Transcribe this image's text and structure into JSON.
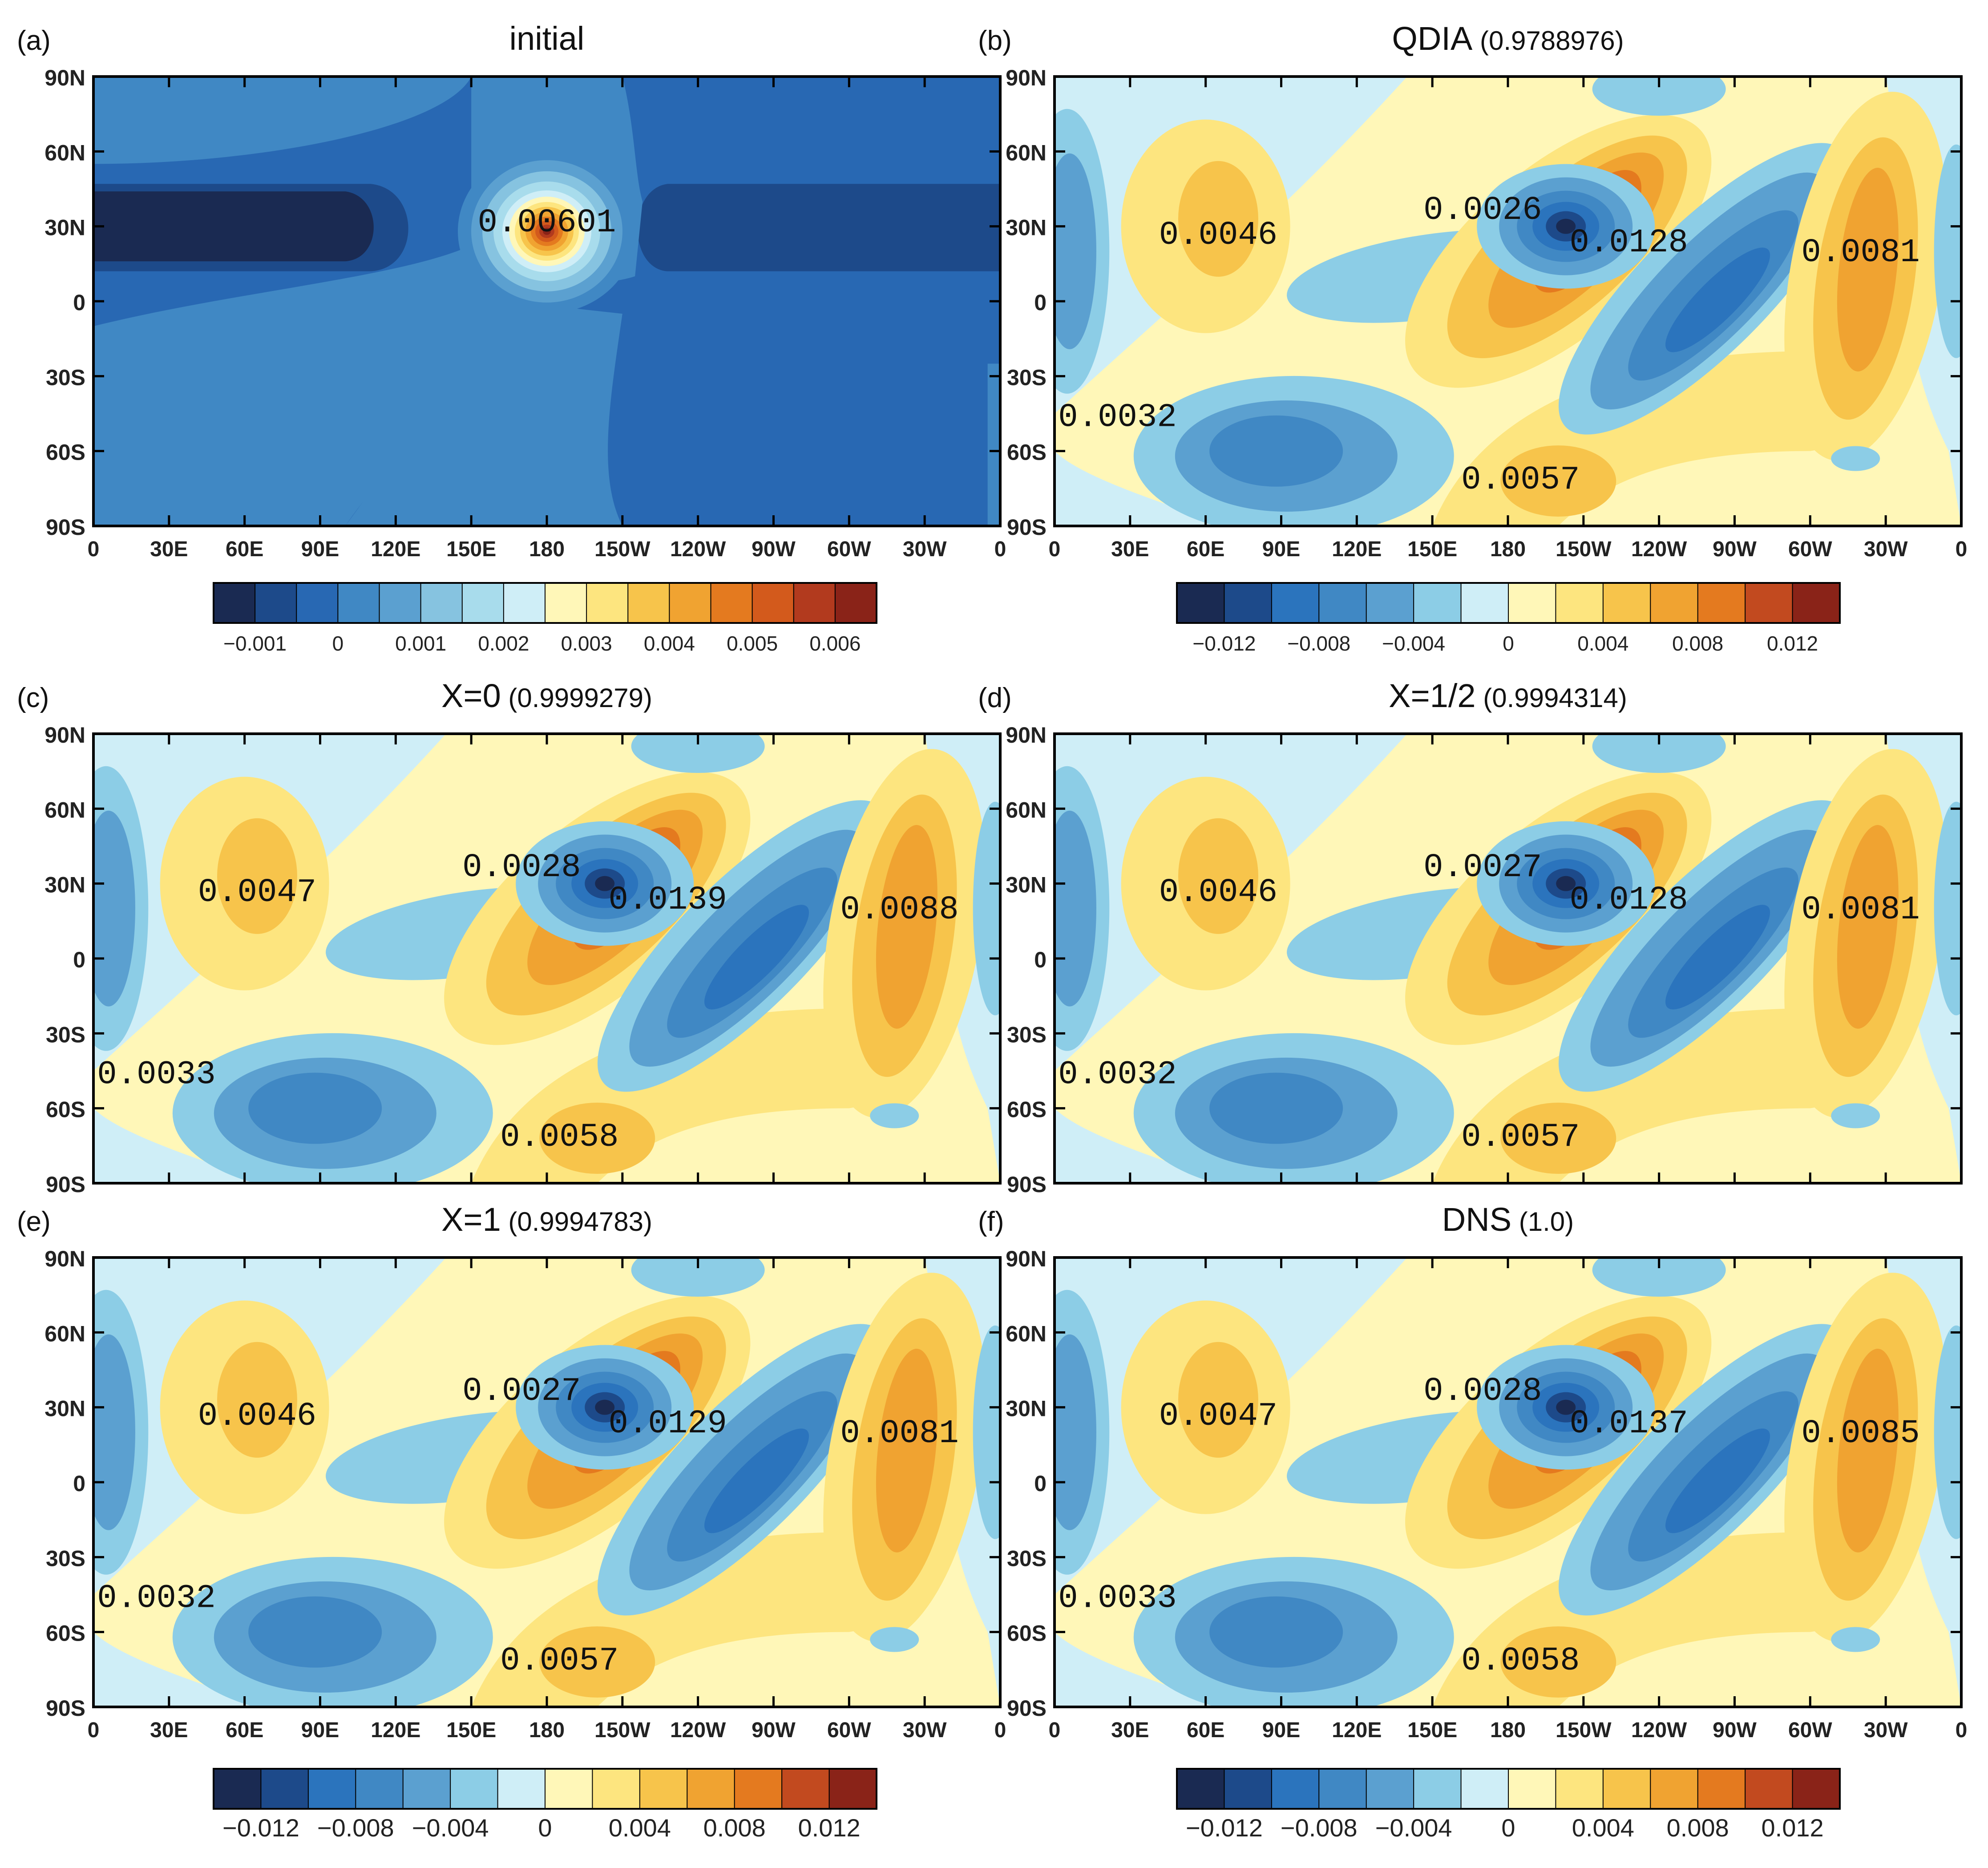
{
  "figure": {
    "colorbars": [
      {
        "id": "cb-a",
        "colors": [
          "#1a2a52",
          "#1d4a8a",
          "#2868b3",
          "#4088c4",
          "#5ba0d0",
          "#86c3e0",
          "#a8dcec",
          "#cfeef7",
          "#fff7b8",
          "#fde57f",
          "#f7c44b",
          "#f0a331",
          "#e47a1f",
          "#d35a1c",
          "#b23a1e",
          "#8a2318"
        ],
        "labels": [
          "−0.001",
          "0",
          "0.001",
          "0.002",
          "0.003",
          "0.004",
          "0.005",
          "0.006"
        ]
      },
      {
        "id": "cb-b",
        "colors": [
          "#1a2a52",
          "#1d4a8a",
          "#2b74bd",
          "#4088c4",
          "#5ba0d0",
          "#8ccde6",
          "#cfeef7",
          "#fff7b8",
          "#fde57f",
          "#f7c44b",
          "#f0a331",
          "#e47a1f",
          "#c24a1f",
          "#8a2318"
        ],
        "labels": [
          "−0.012",
          "−0.008",
          "−0.004",
          "0",
          "0.004",
          "0.008",
          "0.012"
        ]
      },
      {
        "id": "cb-bottom-left",
        "colors": [
          "#1a2a52",
          "#1d4a8a",
          "#2b74bd",
          "#4088c4",
          "#5ba0d0",
          "#8ccde6",
          "#cfeef7",
          "#fff7b8",
          "#fde57f",
          "#f7c44b",
          "#f0a331",
          "#e47a1f",
          "#c24a1f",
          "#8a2318"
        ],
        "labels": [
          "−0.012",
          "−0.008",
          "−0.004",
          "0",
          "0.004",
          "0.008",
          "0.012"
        ]
      },
      {
        "id": "cb-bottom-right",
        "colors": [
          "#1a2a52",
          "#1d4a8a",
          "#2b74bd",
          "#4088c4",
          "#5ba0d0",
          "#8ccde6",
          "#cfeef7",
          "#fff7b8",
          "#fde57f",
          "#f7c44b",
          "#f0a331",
          "#e47a1f",
          "#c24a1f",
          "#8a2318"
        ],
        "labels": [
          "−0.012",
          "−0.008",
          "−0.004",
          "0",
          "0.004",
          "0.008",
          "0.012"
        ]
      }
    ]
  },
  "chart_data": [
    {
      "type": "heatmap",
      "panel": "(a)",
      "title": "initial",
      "title_suffix": "",
      "x_ticks": [
        "0",
        "30E",
        "60E",
        "90E",
        "120E",
        "150E",
        "180",
        "150W",
        "120W",
        "90W",
        "60W",
        "30W",
        "0"
      ],
      "y_ticks": [
        "90N",
        "60N",
        "30N",
        "0",
        "30S",
        "60S",
        "90S"
      ],
      "show_x_ticks": true,
      "field": "initial",
      "annotations": [
        {
          "text": "0.00601",
          "lon": 180,
          "lat": 28
        }
      ]
    },
    {
      "type": "heatmap",
      "panel": "(b)",
      "title": "QDIA",
      "title_suffix": "(0.9788976)",
      "x_ticks": [
        "0",
        "30E",
        "60E",
        "90E",
        "120E",
        "150E",
        "180",
        "150W",
        "120W",
        "90W",
        "60W",
        "30W",
        "0"
      ],
      "y_ticks": [
        "90N",
        "60N",
        "30N",
        "0",
        "30S",
        "60S",
        "90S"
      ],
      "show_x_ticks": true,
      "field": "wave",
      "annotations": [
        {
          "text": "0.0046",
          "lon": 65,
          "lat": 23
        },
        {
          "text": "0.0026",
          "lon": 170,
          "lat": 33
        },
        {
          "text": "0.0128",
          "lon": 228,
          "lat": 20
        },
        {
          "text": "0.0081",
          "lon": 320,
          "lat": 16
        },
        {
          "text": "0.0032",
          "lon": 25,
          "lat": -50
        },
        {
          "text": "0.0057",
          "lon": 185,
          "lat": -75
        }
      ]
    },
    {
      "type": "heatmap",
      "panel": "(c)",
      "title": "X=0",
      "title_suffix": "(0.9999279)",
      "x_ticks": [],
      "y_ticks": [
        "90N",
        "60N",
        "30N",
        "0",
        "30S",
        "60S",
        "90S"
      ],
      "show_x_ticks": false,
      "field": "wave",
      "annotations": [
        {
          "text": "0.0047",
          "lon": 65,
          "lat": 23
        },
        {
          "text": "0.0028",
          "lon": 170,
          "lat": 33
        },
        {
          "text": "0.0139",
          "lon": 228,
          "lat": 20
        },
        {
          "text": "0.0088",
          "lon": 320,
          "lat": 16
        },
        {
          "text": "0.0033",
          "lon": 25,
          "lat": -50
        },
        {
          "text": "0.0058",
          "lon": 185,
          "lat": -75
        }
      ]
    },
    {
      "type": "heatmap",
      "panel": "(d)",
      "title": "X=1/2",
      "title_suffix": "(0.9994314)",
      "x_ticks": [],
      "y_ticks": [
        "90N",
        "60N",
        "30N",
        "0",
        "30S",
        "60S",
        "90S"
      ],
      "show_x_ticks": false,
      "field": "wave",
      "annotations": [
        {
          "text": "0.0046",
          "lon": 65,
          "lat": 23
        },
        {
          "text": "0.0027",
          "lon": 170,
          "lat": 33
        },
        {
          "text": "0.0128",
          "lon": 228,
          "lat": 20
        },
        {
          "text": "0.0081",
          "lon": 320,
          "lat": 16
        },
        {
          "text": "0.0032",
          "lon": 25,
          "lat": -50
        },
        {
          "text": "0.0057",
          "lon": 185,
          "lat": -75
        }
      ]
    },
    {
      "type": "heatmap",
      "panel": "(e)",
      "title": "X=1",
      "title_suffix": "(0.9994783)",
      "x_ticks": [
        "0",
        "30E",
        "60E",
        "90E",
        "120E",
        "150E",
        "180",
        "150W",
        "120W",
        "90W",
        "60W",
        "30W",
        "0"
      ],
      "y_ticks": [
        "90N",
        "60N",
        "30N",
        "0",
        "30S",
        "60S",
        "90S"
      ],
      "show_x_ticks": true,
      "field": "wave",
      "annotations": [
        {
          "text": "0.0046",
          "lon": 65,
          "lat": 23
        },
        {
          "text": "0.0027",
          "lon": 170,
          "lat": 33
        },
        {
          "text": "0.0129",
          "lon": 228,
          "lat": 20
        },
        {
          "text": "0.0081",
          "lon": 320,
          "lat": 16
        },
        {
          "text": "0.0032",
          "lon": 25,
          "lat": -50
        },
        {
          "text": "0.0057",
          "lon": 185,
          "lat": -75
        }
      ]
    },
    {
      "type": "heatmap",
      "panel": "(f)",
      "title": "DNS",
      "title_suffix": "(1.0)",
      "x_ticks": [
        "0",
        "30E",
        "60E",
        "90E",
        "120E",
        "150E",
        "180",
        "150W",
        "120W",
        "90W",
        "60W",
        "30W",
        "0"
      ],
      "y_ticks": [
        "90N",
        "60N",
        "30N",
        "0",
        "30S",
        "60S",
        "90S"
      ],
      "show_x_ticks": true,
      "field": "wave",
      "annotations": [
        {
          "text": "0.0047",
          "lon": 65,
          "lat": 23
        },
        {
          "text": "0.0028",
          "lon": 170,
          "lat": 33
        },
        {
          "text": "0.0137",
          "lon": 228,
          "lat": 20
        },
        {
          "text": "0.0085",
          "lon": 320,
          "lat": 16
        },
        {
          "text": "0.0033",
          "lon": 25,
          "lat": -50
        },
        {
          "text": "0.0058",
          "lon": 185,
          "lat": -75
        }
      ]
    }
  ]
}
